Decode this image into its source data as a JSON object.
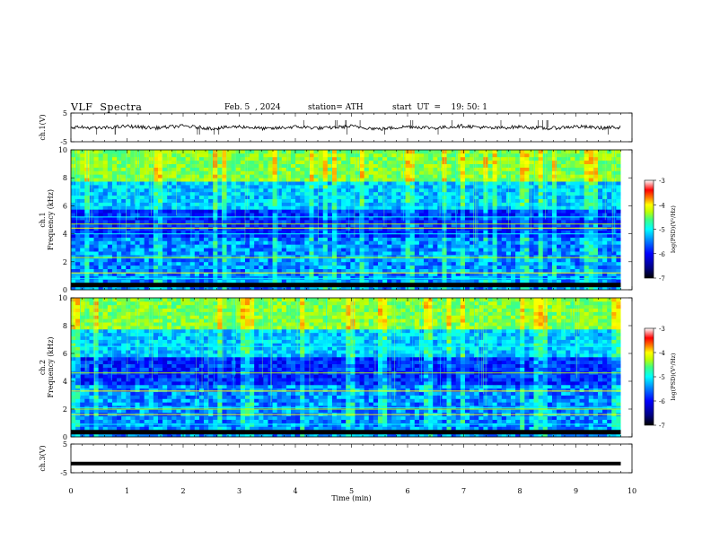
{
  "header": {
    "title": "VLF  Spectra",
    "date": "Feb. 5  , 2024",
    "station": "station= ATH",
    "start": "start  UT  =    19: 50: 1"
  },
  "colorbar": {
    "label": "log(PSD)(V²/Hz)",
    "ticks": [
      "-3",
      "-4",
      "-5",
      "-6",
      "-7"
    ],
    "colors": [
      "#000080",
      "#0000ff",
      "#0080ff",
      "#00ffff",
      "#40ff80",
      "#c0ff00",
      "#ffff00",
      "#ff8000",
      "#ff0000",
      "#ffffff"
    ]
  },
  "chart_data": [
    {
      "type": "line",
      "name": "ch1-waveform",
      "ylabel": "ch.1(V)",
      "ylim": [
        -5,
        5
      ],
      "yticks": [
        "5",
        "-5"
      ],
      "xlim": [
        0,
        10
      ],
      "x": [
        0,
        0.5,
        1,
        1.5,
        2,
        2.5,
        3,
        3.5,
        4,
        4.5,
        5,
        5.5,
        6,
        6.5,
        7,
        7.5,
        8,
        8.5,
        9,
        9.5,
        9.8
      ],
      "y": [
        0.2,
        -0.3,
        0.4,
        -0.2,
        0.5,
        -0.4,
        0.3,
        -0.5,
        0.2,
        -0.3,
        0.4,
        -0.6,
        0.3,
        -0.2,
        0.5,
        -0.3,
        0.2,
        -0.4,
        0.3,
        -0.2,
        0.1
      ],
      "color": "#000000"
    },
    {
      "type": "heatmap",
      "name": "ch1-spectrogram",
      "ylabel": "ch.1\nFrequency  (kHz)",
      "ylim": [
        0,
        10
      ],
      "yticks": [
        "0",
        "2",
        "4",
        "6",
        "8",
        "10"
      ],
      "xlim": [
        0,
        10
      ],
      "data_end_min": 9.8,
      "bands_khz": [
        0.3,
        0.8,
        1.2,
        2.3,
        4.0,
        4.4,
        4.7,
        5.2
      ],
      "colorscale_log_psd": [
        -7,
        -3
      ]
    },
    {
      "type": "heatmap",
      "name": "ch2-spectrogram",
      "ylabel": "ch.2\nFrequency  (kHz)",
      "ylim": [
        0,
        10
      ],
      "yticks": [
        "0",
        "2",
        "4",
        "6",
        "8",
        "10"
      ],
      "xlim": [
        0,
        10
      ],
      "data_end_min": 9.8,
      "bands_khz": [
        0.4,
        0.9,
        1.6,
        2.0,
        2.1,
        3.3,
        4.6,
        6.5
      ],
      "colorscale_log_psd": [
        -7,
        -3
      ]
    },
    {
      "type": "line",
      "name": "ch3-waveform",
      "ylabel": "ch.3(V)",
      "ylim": [
        -5,
        5
      ],
      "yticks": [
        "5",
        "-5"
      ],
      "xlim": [
        0,
        10
      ],
      "x": [
        0,
        9.8
      ],
      "y": [
        -1.8,
        -1.8
      ],
      "color": "#000000"
    }
  ],
  "xaxis": {
    "label": "Time  (min)",
    "ticks": [
      "0",
      "1",
      "2",
      "3",
      "4",
      "5",
      "6",
      "7",
      "8",
      "9",
      "10"
    ]
  }
}
